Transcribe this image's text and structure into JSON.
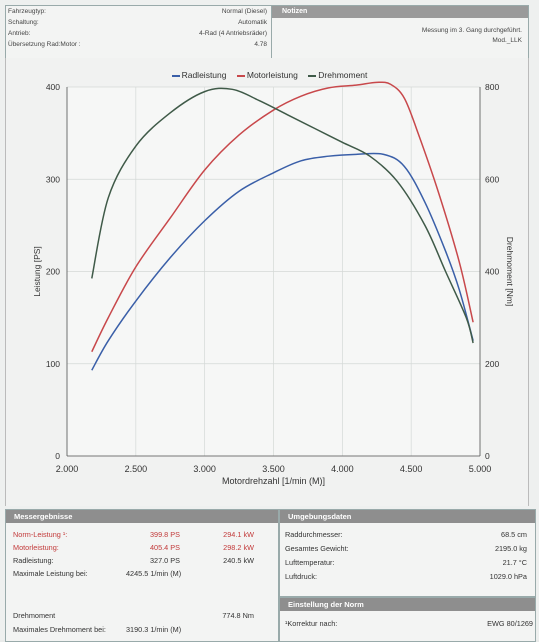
{
  "vehicle": {
    "rows": [
      {
        "label": "Fahrzeugtyp:",
        "value": "Normal (Diesel)"
      },
      {
        "label": "Schaltung:",
        "value": "Automatik"
      },
      {
        "label": "Antrieb:",
        "value": "4-Rad (4 Antriebsräder)"
      },
      {
        "label": "Übersetzung Rad:Motor :",
        "value": "4.78"
      }
    ]
  },
  "notes": {
    "title": "Notizen",
    "line1": "Messung im 3. Gang durchgeführt.",
    "line2": "Mod._LLK"
  },
  "colors": {
    "radleistung": "#3a5fa8",
    "motorleistung": "#c8484b",
    "drehmoment": "#3f5a48"
  },
  "chart_data": {
    "type": "line",
    "xlabel": "Motordrehzahl [1/min (M)]",
    "ylabel": "Leistung [PS]",
    "y2label": "Drehmoment [Nm]",
    "xlim": [
      2000,
      5000
    ],
    "ylim": [
      0,
      400
    ],
    "y2lim": [
      0,
      800
    ],
    "x_ticks": [
      "2.000",
      "2.500",
      "3.000",
      "3.500",
      "4.000",
      "4.500",
      "5.000"
    ],
    "y_ticks": [
      "0",
      "100",
      "200",
      "300",
      "400"
    ],
    "y2_ticks": [
      "0",
      "200",
      "400",
      "600",
      "800"
    ],
    "legend_position": "top",
    "grid": true,
    "series": [
      {
        "name": "Radleistung",
        "axis": "left",
        "x": [
          2180,
          2300,
          2500,
          2750,
          3000,
          3250,
          3500,
          3700,
          3900,
          4100,
          4300,
          4450,
          4600,
          4750,
          4850,
          4950
        ],
        "values": [
          93,
          125,
          168,
          215,
          255,
          287,
          307,
          320,
          325,
          327,
          327,
          314,
          275,
          222,
          180,
          125
        ]
      },
      {
        "name": "Motorleistung",
        "axis": "left",
        "x": [
          2180,
          2300,
          2500,
          2750,
          3000,
          3250,
          3500,
          3700,
          3900,
          4100,
          4250,
          4350,
          4450,
          4550,
          4700,
          4850,
          4950
        ],
        "values": [
          113,
          150,
          205,
          258,
          310,
          348,
          375,
          390,
          399,
          402,
          405,
          403,
          388,
          350,
          285,
          210,
          145
        ]
      },
      {
        "name": "Drehmoment",
        "axis": "right",
        "x": [
          2180,
          2300,
          2500,
          2750,
          3000,
          3200,
          3400,
          3600,
          3800,
          4000,
          4200,
          4400,
          4600,
          4750,
          4900,
          4950
        ],
        "values": [
          385,
          560,
          672,
          744,
          790,
          795,
          770,
          740,
          710,
          680,
          650,
          595,
          500,
          400,
          300,
          245
        ]
      }
    ]
  },
  "results": {
    "title": "Messergebnisse",
    "norm_label": "Norm-Leistung ¹:",
    "norm_ps": "399.8 PS",
    "norm_kw": "294.1 kW",
    "motor_label": "Motorleistung:",
    "motor_ps": "405.4 PS",
    "motor_kw": "298.2 kW",
    "rad_label": "Radleistung:",
    "rad_ps": "327.0 PS",
    "rad_kw": "240.5 kW",
    "maxleistung_label": "Maximale Leistung bei:",
    "maxleistung_value": "4245.5 1/min (M)",
    "drehmoment_label": "Drehmoment",
    "drehmoment_value": "774.8 Nm",
    "maxdreh_label": "Maximales Drehmoment bei:",
    "maxdreh_value": "3190.3 1/min (M)"
  },
  "environment": {
    "title": "Umgebungsdaten",
    "rows": [
      {
        "label": "Raddurchmesser:",
        "value": "68.5 cm"
      },
      {
        "label": "Gesamtes Gewicht:",
        "value": "2195.0 kg"
      },
      {
        "label": "Lufttemperatur:",
        "value": "21.7 °C"
      },
      {
        "label": "Luftdruck:",
        "value": "1029.0 hPa"
      }
    ]
  },
  "norm": {
    "title": "Einstellung der Norm",
    "label": "¹Korrektur nach:",
    "value": "EWG 80/1269"
  }
}
